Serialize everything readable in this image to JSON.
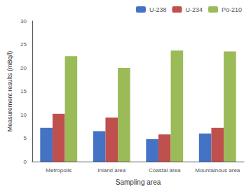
{
  "chart_data": {
    "type": "bar",
    "xlabel": "Sampling area",
    "ylabel": "Measurement results (mBq/l)",
    "categories": [
      "Metropolis",
      "Inland area",
      "Coastal area",
      "Mountainous area"
    ],
    "series": [
      {
        "name": "U-238",
        "color": "#4472c4",
        "values": [
          7.2,
          6.5,
          4.8,
          6.0
        ]
      },
      {
        "name": "U-234",
        "color": "#c0504d",
        "values": [
          10.2,
          9.4,
          5.8,
          7.2
        ]
      },
      {
        "name": "Po-210",
        "color": "#9bbb59",
        "values": [
          22.5,
          20.0,
          23.7,
          23.5
        ]
      }
    ],
    "ylim": [
      0,
      30
    ],
    "yticks": [
      0,
      5,
      10,
      15,
      20,
      25,
      30
    ],
    "grid": false,
    "legend": "upper right"
  }
}
